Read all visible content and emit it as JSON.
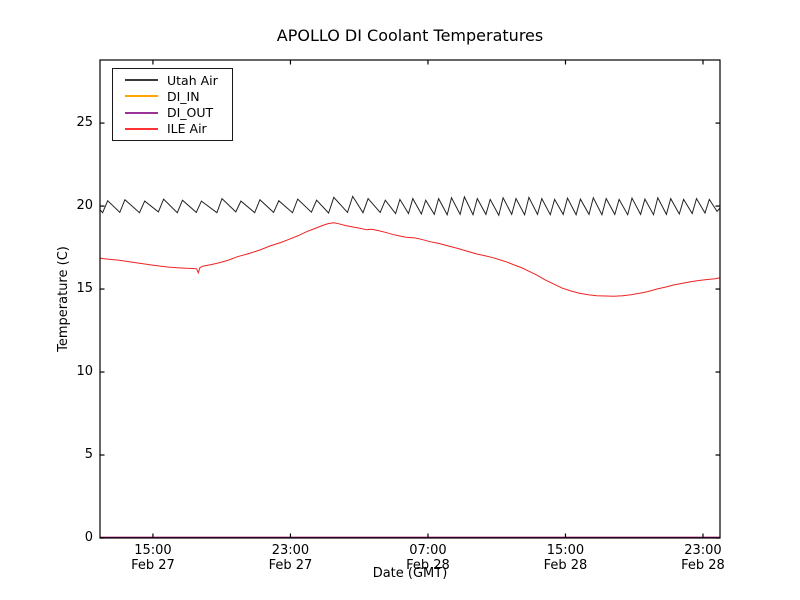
{
  "title": "APOLLO DI Coolant Temperatures",
  "axes": {
    "xlabel": "Date (GMT)",
    "ylabel": "Temperature (C)",
    "yticks": [
      0,
      5,
      10,
      15,
      20,
      25
    ],
    "ylim": [
      0,
      28.8
    ],
    "xlim_hours": [
      0,
      36.07
    ],
    "xticks": [
      {
        "hours": 3.08,
        "time": "15:00",
        "date": "Feb 27"
      },
      {
        "hours": 11.08,
        "time": "23:00",
        "date": "Feb 27"
      },
      {
        "hours": 19.08,
        "time": "07:00",
        "date": "Feb 28"
      },
      {
        "hours": 27.08,
        "time": "15:00",
        "date": "Feb 28"
      },
      {
        "hours": 35.08,
        "time": "23:00",
        "date": "Feb 28"
      }
    ],
    "grid": false,
    "tick_direction": "in"
  },
  "legend": {
    "position": "upper-left",
    "entries": [
      {
        "label": "Utah Air",
        "color": "#3a3a3a"
      },
      {
        "label": "DI_IN",
        "color": "#ffa500"
      },
      {
        "label": "DI_OUT",
        "color": "#993399"
      },
      {
        "label": "ILE Air",
        "color": "#ff3333"
      }
    ]
  },
  "chart_data": {
    "type": "line",
    "title": "APOLLO DI Coolant Temperatures",
    "xlabel": "Date (GMT)",
    "ylabel": "Temperature (C)",
    "x_units": "hours from Feb 27 ~12:00 GMT",
    "ylim": [
      0,
      28.8
    ],
    "xlim": [
      0,
      36.07
    ],
    "series": [
      {
        "name": "Utah Air",
        "color": "#222222",
        "points": [
          [
            0,
            19.78
          ],
          [
            0.15,
            19.6
          ],
          [
            0.45,
            20.32
          ],
          [
            1.15,
            19.62
          ],
          [
            1.45,
            20.38
          ],
          [
            2.3,
            19.6
          ],
          [
            2.6,
            20.3
          ],
          [
            3.4,
            19.65
          ],
          [
            3.7,
            20.42
          ],
          [
            4.5,
            19.6
          ],
          [
            4.8,
            20.35
          ],
          [
            5.6,
            19.62
          ],
          [
            5.9,
            20.3
          ],
          [
            6.8,
            19.6
          ],
          [
            7.1,
            20.45
          ],
          [
            7.9,
            19.65
          ],
          [
            8.2,
            20.3
          ],
          [
            9,
            19.6
          ],
          [
            9.3,
            20.38
          ],
          [
            10.1,
            19.62
          ],
          [
            10.4,
            20.32
          ],
          [
            11.2,
            19.6
          ],
          [
            11.5,
            20.42
          ],
          [
            12.3,
            19.63
          ],
          [
            12.6,
            20.35
          ],
          [
            13.3,
            19.58
          ],
          [
            13.6,
            20.52
          ],
          [
            14.4,
            19.62
          ],
          [
            14.7,
            20.58
          ],
          [
            15.3,
            19.6
          ],
          [
            15.6,
            20.45
          ],
          [
            16.3,
            19.62
          ],
          [
            16.6,
            20.35
          ],
          [
            17.2,
            19.55
          ],
          [
            17.45,
            20.4
          ],
          [
            17.95,
            19.55
          ],
          [
            18.2,
            20.45
          ],
          [
            18.7,
            19.52
          ],
          [
            18.95,
            20.35
          ],
          [
            19.45,
            19.5
          ],
          [
            19.7,
            20.45
          ],
          [
            20.2,
            19.48
          ],
          [
            20.45,
            20.5
          ],
          [
            20.95,
            19.5
          ],
          [
            21.2,
            20.55
          ],
          [
            21.7,
            19.48
          ],
          [
            21.95,
            20.45
          ],
          [
            22.45,
            19.5
          ],
          [
            22.7,
            20.4
          ],
          [
            23.2,
            19.45
          ],
          [
            23.45,
            20.5
          ],
          [
            23.95,
            19.5
          ],
          [
            24.2,
            20.45
          ],
          [
            24.7,
            19.48
          ],
          [
            24.95,
            20.52
          ],
          [
            25.45,
            19.5
          ],
          [
            25.7,
            20.45
          ],
          [
            26.2,
            19.48
          ],
          [
            26.45,
            20.4
          ],
          [
            26.95,
            19.5
          ],
          [
            27.2,
            20.48
          ],
          [
            27.7,
            19.48
          ],
          [
            27.95,
            20.42
          ],
          [
            28.45,
            19.5
          ],
          [
            28.7,
            20.5
          ],
          [
            29.2,
            19.48
          ],
          [
            29.45,
            20.45
          ],
          [
            29.95,
            19.5
          ],
          [
            30.2,
            20.4
          ],
          [
            30.7,
            19.48
          ],
          [
            30.95,
            20.48
          ],
          [
            31.45,
            19.5
          ],
          [
            31.7,
            20.42
          ],
          [
            32.2,
            19.48
          ],
          [
            32.45,
            20.5
          ],
          [
            32.95,
            19.5
          ],
          [
            33.2,
            20.45
          ],
          [
            33.7,
            19.52
          ],
          [
            33.95,
            20.4
          ],
          [
            34.45,
            19.55
          ],
          [
            34.7,
            20.45
          ],
          [
            35.2,
            19.58
          ],
          [
            35.45,
            20.4
          ],
          [
            35.9,
            19.68
          ],
          [
            36.07,
            19.88
          ]
        ]
      },
      {
        "name": "DI_IN",
        "color": "#ffa500",
        "points": [
          [
            0,
            0
          ],
          [
            36.07,
            0
          ]
        ]
      },
      {
        "name": "DI_OUT",
        "color": "#800080",
        "points": [
          [
            0,
            0
          ],
          [
            36.07,
            0
          ]
        ]
      },
      {
        "name": "ILE Air",
        "color": "#ee2222",
        "points": [
          [
            0,
            16.85
          ],
          [
            0.5,
            16.8
          ],
          [
            1,
            16.75
          ],
          [
            1.5,
            16.68
          ],
          [
            2,
            16.6
          ],
          [
            2.5,
            16.52
          ],
          [
            3,
            16.45
          ],
          [
            3.5,
            16.38
          ],
          [
            4,
            16.32
          ],
          [
            4.5,
            16.28
          ],
          [
            5,
            16.25
          ],
          [
            5.4,
            16.24
          ],
          [
            5.62,
            16.22
          ],
          [
            5.72,
            15.98
          ],
          [
            5.82,
            16.3
          ],
          [
            6,
            16.38
          ],
          [
            6.5,
            16.48
          ],
          [
            7,
            16.6
          ],
          [
            7.5,
            16.75
          ],
          [
            8,
            16.95
          ],
          [
            8.7,
            17.15
          ],
          [
            9.3,
            17.35
          ],
          [
            9.9,
            17.6
          ],
          [
            10.5,
            17.8
          ],
          [
            11,
            18.0
          ],
          [
            11.5,
            18.2
          ],
          [
            12,
            18.45
          ],
          [
            12.5,
            18.65
          ],
          [
            13,
            18.85
          ],
          [
            13.3,
            18.95
          ],
          [
            13.6,
            19.0
          ],
          [
            13.9,
            18.93
          ],
          [
            14.3,
            18.82
          ],
          [
            14.8,
            18.72
          ],
          [
            15.2,
            18.65
          ],
          [
            15.5,
            18.57
          ],
          [
            15.8,
            18.6
          ],
          [
            16.2,
            18.52
          ],
          [
            16.6,
            18.42
          ],
          [
            17,
            18.3
          ],
          [
            17.4,
            18.2
          ],
          [
            17.8,
            18.12
          ],
          [
            18.3,
            18.08
          ],
          [
            18.7,
            18.0
          ],
          [
            19.2,
            17.85
          ],
          [
            19.7,
            17.75
          ],
          [
            20.2,
            17.62
          ],
          [
            20.8,
            17.45
          ],
          [
            21.3,
            17.3
          ],
          [
            21.9,
            17.12
          ],
          [
            22.4,
            17.0
          ],
          [
            22.9,
            16.88
          ],
          [
            23.3,
            16.75
          ],
          [
            23.7,
            16.62
          ],
          [
            24.1,
            16.45
          ],
          [
            24.5,
            16.3
          ],
          [
            24.9,
            16.1
          ],
          [
            25.4,
            15.85
          ],
          [
            25.9,
            15.55
          ],
          [
            26.4,
            15.3
          ],
          [
            26.9,
            15.05
          ],
          [
            27.4,
            14.88
          ],
          [
            27.9,
            14.75
          ],
          [
            28.4,
            14.66
          ],
          [
            28.9,
            14.6
          ],
          [
            29.4,
            14.58
          ],
          [
            29.9,
            14.57
          ],
          [
            30.4,
            14.6
          ],
          [
            30.9,
            14.66
          ],
          [
            31.4,
            14.75
          ],
          [
            31.9,
            14.85
          ],
          [
            32.4,
            15.0
          ],
          [
            32.9,
            15.12
          ],
          [
            33.4,
            15.25
          ],
          [
            33.9,
            15.35
          ],
          [
            34.4,
            15.45
          ],
          [
            34.9,
            15.52
          ],
          [
            35.4,
            15.58
          ],
          [
            35.8,
            15.62
          ],
          [
            36.07,
            15.68
          ]
        ]
      }
    ]
  }
}
